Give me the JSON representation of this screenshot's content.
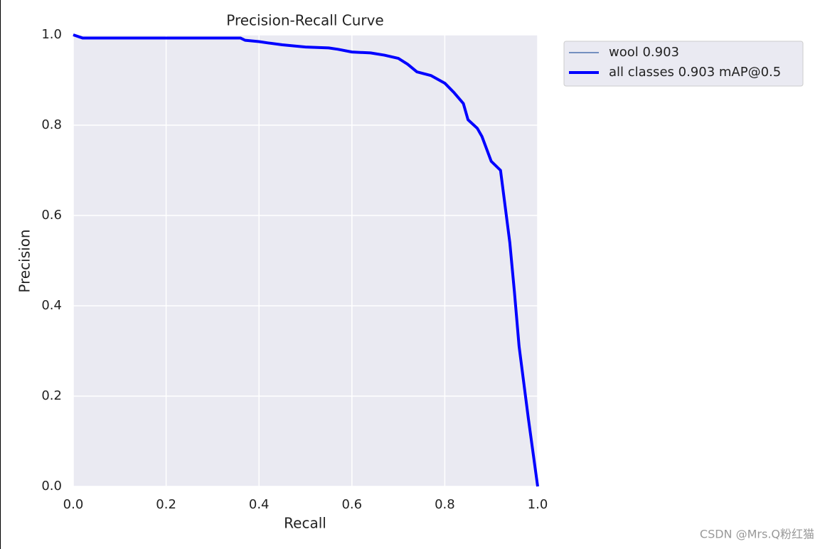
{
  "chart_data": {
    "type": "line",
    "title": "Precision-Recall Curve",
    "x_label": "Recall",
    "y_label": "Precision",
    "x": [
      0.0,
      0.02,
      0.36,
      0.37,
      0.4,
      0.42,
      0.45,
      0.5,
      0.55,
      0.57,
      0.6,
      0.64,
      0.67,
      0.7,
      0.72,
      0.74,
      0.77,
      0.8,
      0.82,
      0.84,
      0.85,
      0.87,
      0.88,
      0.9,
      0.92,
      0.93,
      0.94,
      0.95,
      0.96,
      0.98,
      1.0
    ],
    "series": [
      {
        "name": "wool 0.903",
        "color": "#4c72b0",
        "width": 1.5,
        "values": [
          1.0,
          0.993,
          0.993,
          0.988,
          0.985,
          0.982,
          0.978,
          0.973,
          0.971,
          0.968,
          0.962,
          0.96,
          0.955,
          0.948,
          0.935,
          0.918,
          0.91,
          0.893,
          0.872,
          0.848,
          0.812,
          0.793,
          0.775,
          0.72,
          0.7,
          0.62,
          0.54,
          0.43,
          0.31,
          0.15,
          0.0
        ]
      },
      {
        "name": "all classes 0.903 mAP@0.5",
        "color": "#0000ff",
        "width": 4,
        "values": [
          1.0,
          0.993,
          0.993,
          0.988,
          0.985,
          0.982,
          0.978,
          0.973,
          0.971,
          0.968,
          0.962,
          0.96,
          0.955,
          0.948,
          0.935,
          0.918,
          0.91,
          0.893,
          0.872,
          0.848,
          0.812,
          0.793,
          0.775,
          0.72,
          0.7,
          0.62,
          0.54,
          0.43,
          0.31,
          0.15,
          0.0
        ]
      }
    ],
    "xlim": [
      0,
      1
    ],
    "ylim": [
      0,
      1
    ],
    "xticks": [
      {
        "value": 0,
        "label": "0.0"
      },
      0.2,
      0.4,
      0.6,
      0.8,
      {
        "value": 1,
        "label": "1.0"
      }
    ],
    "yticks": [
      {
        "value": 0,
        "label": "0.0"
      },
      0.2,
      0.4,
      0.6,
      0.8,
      {
        "value": 1,
        "label": "1.0"
      }
    ],
    "grid": true,
    "legend": "outside-upper-right",
    "watermark": "CSDN @Mrs.Q粉红猫"
  }
}
